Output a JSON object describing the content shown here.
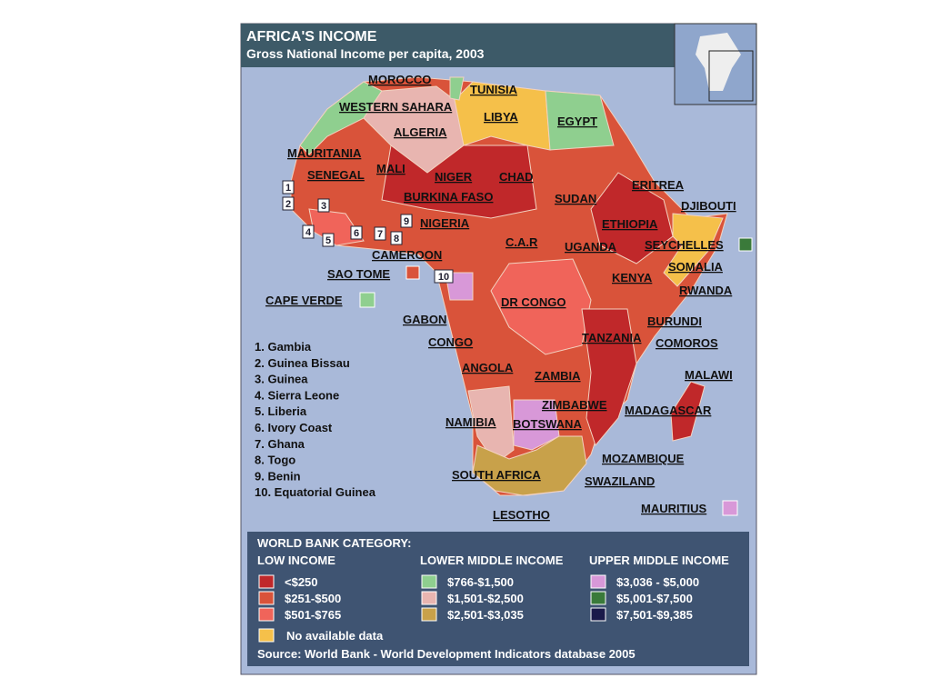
{
  "header": {
    "title": "AFRICA'S INCOME",
    "subtitle": "Gross National Income per capita, 2003"
  },
  "map": {
    "labels": [
      "MOROCCO",
      "TUNISIA",
      "WESTERN SAHARA",
      "LIBYA",
      "ALGERIA",
      "EGYPT",
      "MAURITANIA",
      "MALI",
      "NIGER",
      "CHAD",
      "SENEGAL",
      "SUDAN",
      "ERITREA",
      "DJIBOUTI",
      "BURKINA FASO",
      "NIGERIA",
      "ETHIOPIA",
      "C.A.R",
      "UGANDA",
      "SEYCHELLES",
      "CAMEROON",
      "SOMALIA",
      "SAO TOME",
      "KENYA",
      "RWANDA",
      "CAPE VERDE",
      "DR CONGO",
      "GABON",
      "BURUNDI",
      "TANZANIA",
      "CONGO",
      "COMOROS",
      "ANGOLA",
      "ZAMBIA",
      "MALAWI",
      "ZIMBABWE",
      "MADAGASCAR",
      "NAMIBIA",
      "BOTSWANA",
      "MOZAMBIQUE",
      "SOUTH AFRICA",
      "SWAZILAND",
      "MAURITIUS",
      "LESOTHO"
    ],
    "markers": [
      "1",
      "2",
      "3",
      "4",
      "5",
      "6",
      "7",
      "8",
      "9",
      "10"
    ],
    "key": [
      "1. Gambia",
      "2. Guinea Bissau",
      "3. Guinea",
      "4. Sierra Leone",
      "5. Liberia",
      "6. Ivory Coast",
      "7. Ghana",
      "8. Togo",
      "9. Benin",
      "10. Equatorial Guinea"
    ]
  },
  "legend": {
    "title": "WORLD BANK CATEGORY:",
    "groups": [
      {
        "heading": "LOW INCOME",
        "items": [
          {
            "label": "<$250",
            "color": "#c0282a"
          },
          {
            "label": "$251-$500",
            "color": "#d9533a"
          },
          {
            "label": "$501-$765",
            "color": "#f0645a"
          }
        ]
      },
      {
        "heading": "LOWER MIDDLE INCOME",
        "items": [
          {
            "label": "$766-$1,500",
            "color": "#8fcf8f"
          },
          {
            "label": "$1,501-$2,500",
            "color": "#e8b5b0"
          },
          {
            "label": "$2,501-$3,035",
            "color": "#c8a14a"
          }
        ]
      },
      {
        "heading": "UPPER MIDDLE INCOME",
        "items": [
          {
            "label": "$3,036 - $5,000",
            "color": "#d898d8"
          },
          {
            "label": "$5,001-$7,500",
            "color": "#3a7a3a"
          },
          {
            "label": "$7,501-$9,385",
            "color": "#1a1a4a"
          }
        ]
      }
    ],
    "no_data": {
      "label": "No available data",
      "color": "#f5c04a"
    },
    "source": "Source: World Bank - World Development Indicators database 2005"
  }
}
